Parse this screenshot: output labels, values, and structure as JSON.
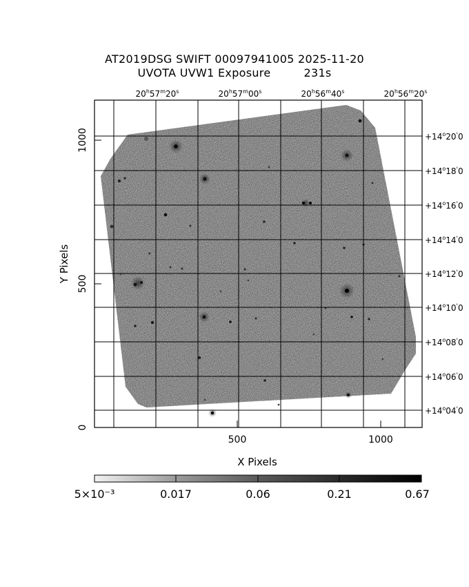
{
  "title": {
    "line1": "AT2019DSG SWIFT 00097941005 2025-11-20",
    "line2_instrument": "UVOTA UVW1 Exposure",
    "line2_exposure": "231s"
  },
  "axes": {
    "xlabel": "X Pixels",
    "ylabel": "Y Pixels",
    "x_ticks": [
      {
        "value": 500,
        "label": "500"
      },
      {
        "value": 1000,
        "label": "1000"
      }
    ],
    "y_ticks": [
      {
        "value": 0,
        "label": "0"
      },
      {
        "value": 500,
        "label": "500"
      },
      {
        "value": 1000,
        "label": "1000"
      }
    ]
  },
  "ra_labels": [
    {
      "h": "20",
      "m": "57",
      "s": "20"
    },
    {
      "h": "20",
      "m": "57",
      "s": "00"
    },
    {
      "h": "20",
      "m": "56",
      "s": "40"
    },
    {
      "h": "20",
      "m": "56",
      "s": "20"
    }
  ],
  "dec_labels": [
    {
      "deg": "+14",
      "min": "20"
    },
    {
      "deg": "+14",
      "min": "18"
    },
    {
      "deg": "+14",
      "min": "16"
    },
    {
      "deg": "+14",
      "min": "14"
    },
    {
      "deg": "+14",
      "min": "12"
    },
    {
      "deg": "+14",
      "min": "10"
    },
    {
      "deg": "+14",
      "min": "08"
    },
    {
      "deg": "+14",
      "min": "06"
    },
    {
      "deg": "+14",
      "min": "04"
    }
  ],
  "colorbar": {
    "labels": [
      "5×10⁻³",
      "0.017",
      "0.06",
      "0.21",
      "0.67"
    ]
  },
  "colors": {
    "frame": "#000000",
    "image_gray": "#a8a8a8"
  }
}
